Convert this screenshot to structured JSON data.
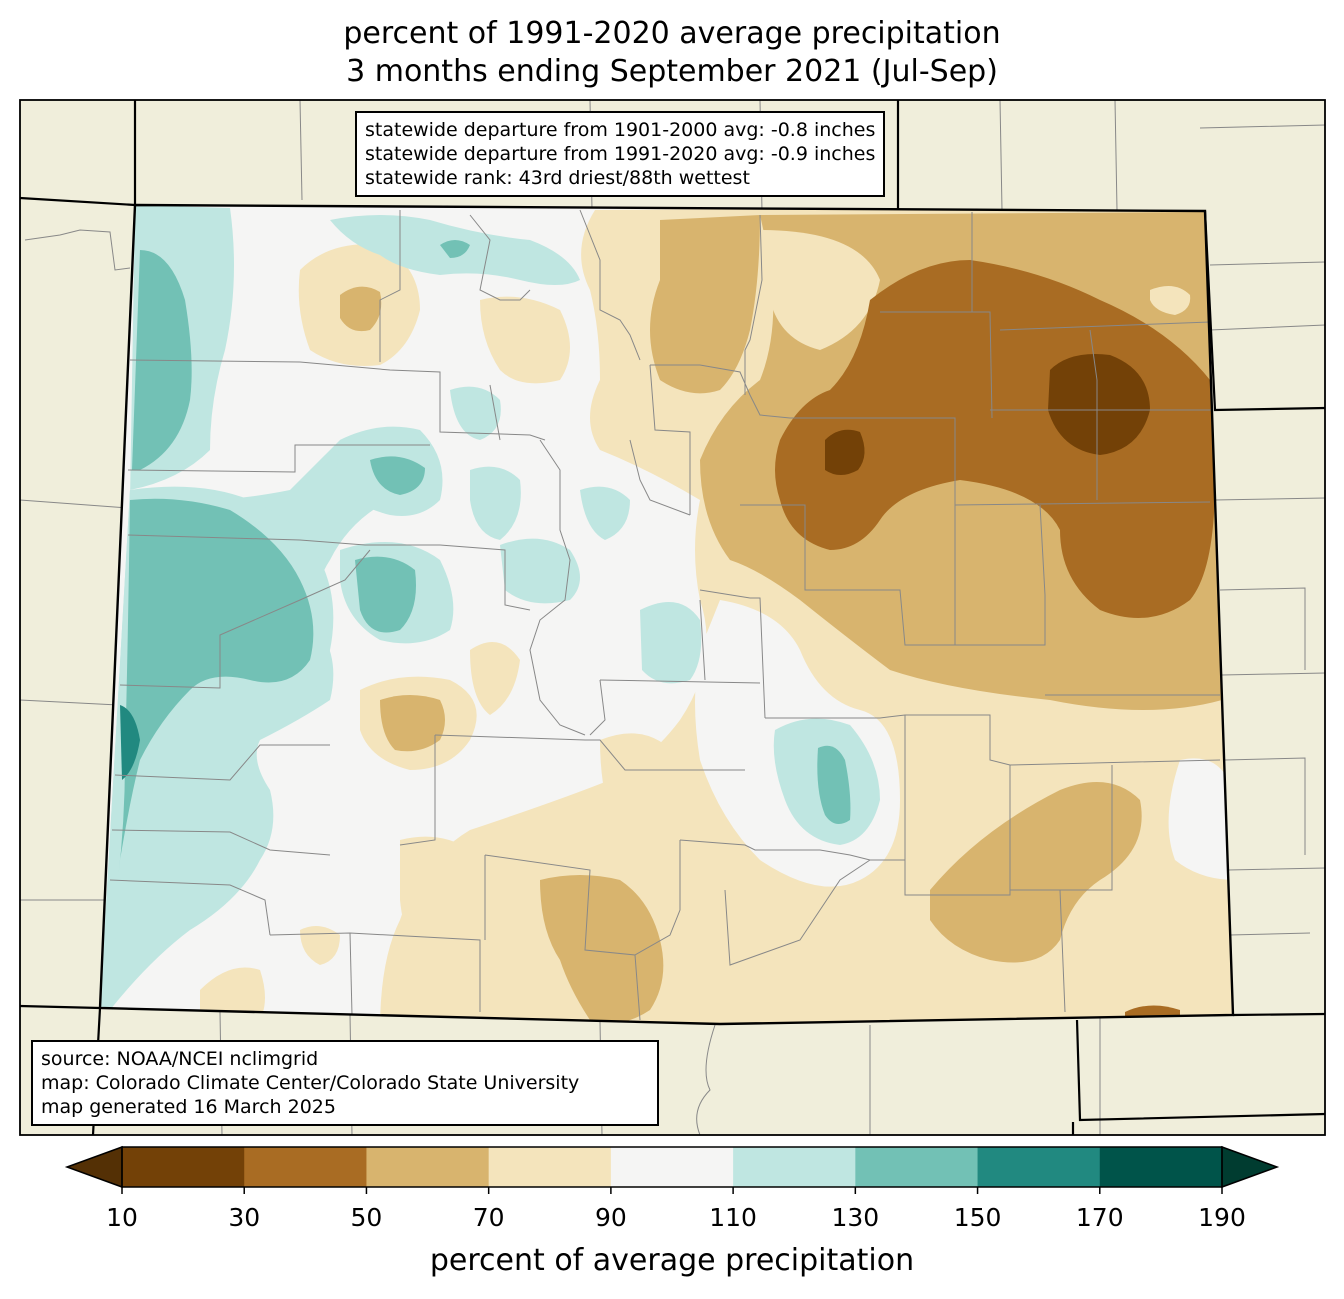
{
  "title": {
    "line1": "percent of 1991-2020 average precipitation",
    "line2": "3 months ending September 2021 (Jul-Sep)"
  },
  "stats": {
    "line1": "statewide departure from 1901-2000 avg: -0.8 inches",
    "line2": "statewide departure from 1991-2020 avg: -0.9 inches",
    "line3": "statewide rank: 43rd driest/88th wettest"
  },
  "source": {
    "line1": "source: NOAA/NCEI nclimgrid",
    "line2": "map: Colorado Climate Center/Colorado State University",
    "line3": "map generated 16 March 2025"
  },
  "colorbar": {
    "label": "percent of average precipitation",
    "ticks": [
      "10",
      "30",
      "50",
      "70",
      "90",
      "110",
      "130",
      "150",
      "170",
      "190"
    ],
    "colors": [
      "#734107",
      "#a96c23",
      "#d8b46e",
      "#f4e4bc",
      "#f5f5f4",
      "#bfe6e1",
      "#72c1b5",
      "#218980",
      "#00544a"
    ],
    "under_color": "#543005",
    "over_color": "#003c30"
  },
  "map": {
    "background_color": "#f0eedb",
    "state_fill_base": "#f5f5f4",
    "state_border_color": "#000000",
    "county_line_color": "#888888"
  }
}
